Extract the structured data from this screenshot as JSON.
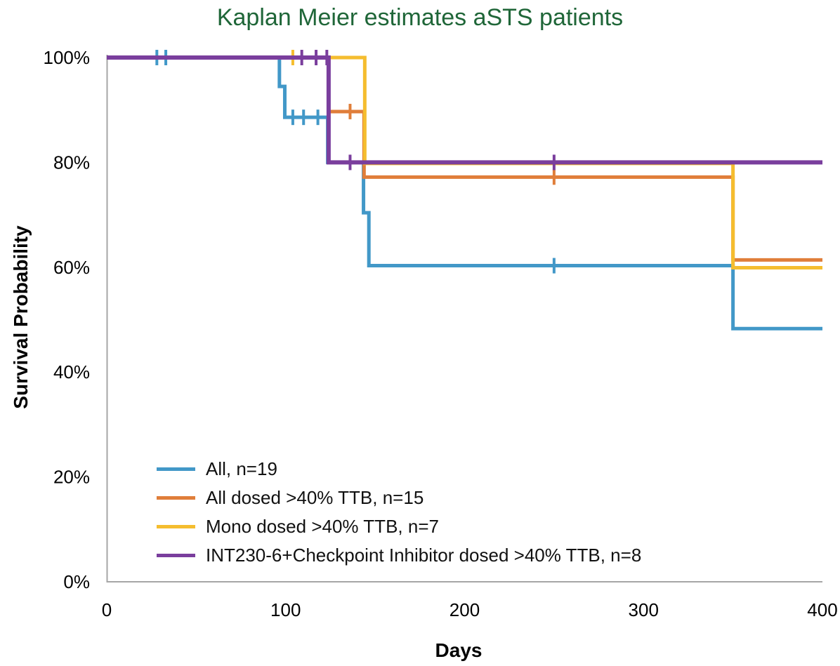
{
  "chart_data": {
    "type": "line",
    "subtype": "kaplan-meier-step",
    "title": "Kaplan Meier estimates aSTS patients",
    "title_color": "#1F6638",
    "xlabel": "Days",
    "ylabel": "Survival Probability",
    "xlim": [
      0,
      400
    ],
    "ylim": [
      0,
      100
    ],
    "x_ticks": [
      0,
      100,
      200,
      300,
      400
    ],
    "y_ticks": [
      "0%",
      "20%",
      "40%",
      "60%",
      "80%",
      "100%"
    ],
    "y_tick_values": [
      0,
      20,
      40,
      60,
      80,
      100
    ],
    "grid": false,
    "axis_color": "#A6A6A6",
    "legend_position": "inside-bottom-left",
    "series": [
      {
        "id": "all",
        "name": "All, n=19",
        "color": "#4298C8",
        "line_width": 5,
        "steps": [
          [
            0,
            100
          ],
          [
            96.5,
            100
          ],
          [
            96.5,
            94.5
          ],
          [
            99.5,
            94.5
          ],
          [
            99.5,
            88.6
          ],
          [
            123.5,
            88.6
          ],
          [
            123.5,
            80
          ],
          [
            143.5,
            80
          ],
          [
            143.5,
            70.4
          ],
          [
            146.5,
            70.4
          ],
          [
            146.5,
            60.3
          ],
          [
            350,
            60.3
          ],
          [
            350,
            48.3
          ],
          [
            400,
            48.3
          ]
        ],
        "censor_marks": [
          [
            28,
            100
          ],
          [
            33,
            100
          ],
          [
            104,
            88.6
          ],
          [
            110,
            88.6
          ],
          [
            118,
            88.6
          ],
          [
            250,
            60.3
          ]
        ]
      },
      {
        "id": "all-dosed",
        "name": "All dosed >40% TTB, n=15",
        "color": "#E07E3A",
        "line_width": 5,
        "steps": [
          [
            0,
            100
          ],
          [
            124,
            100
          ],
          [
            124,
            89.7
          ],
          [
            143.8,
            89.7
          ],
          [
            143.8,
            77.2
          ],
          [
            350,
            77.2
          ],
          [
            350,
            61.4
          ],
          [
            400,
            61.4
          ]
        ],
        "censor_marks": [
          [
            136,
            89.7
          ],
          [
            250,
            77.2
          ]
        ]
      },
      {
        "id": "mono-dosed",
        "name": "Mono dosed >40% TTB, n=7",
        "color": "#F5BD2F",
        "line_width": 5,
        "steps": [
          [
            0,
            100
          ],
          [
            144.2,
            100
          ],
          [
            144.2,
            79.8
          ],
          [
            350,
            79.8
          ],
          [
            350,
            59.9
          ],
          [
            400,
            59.9
          ]
        ],
        "censor_marks": [
          [
            104,
            100
          ]
        ]
      },
      {
        "id": "combo-dosed",
        "name": "INT230-6+Checkpoint Inhibitor dosed >40% TTB, n=8",
        "color": "#7A3E9D",
        "line_width": 6,
        "steps": [
          [
            0,
            100
          ],
          [
            124,
            100
          ],
          [
            124,
            80
          ],
          [
            400,
            80
          ]
        ],
        "censor_marks": [
          [
            109,
            100
          ],
          [
            117,
            100
          ],
          [
            123,
            100
          ],
          [
            136,
            80
          ],
          [
            250,
            80
          ]
        ]
      }
    ]
  }
}
